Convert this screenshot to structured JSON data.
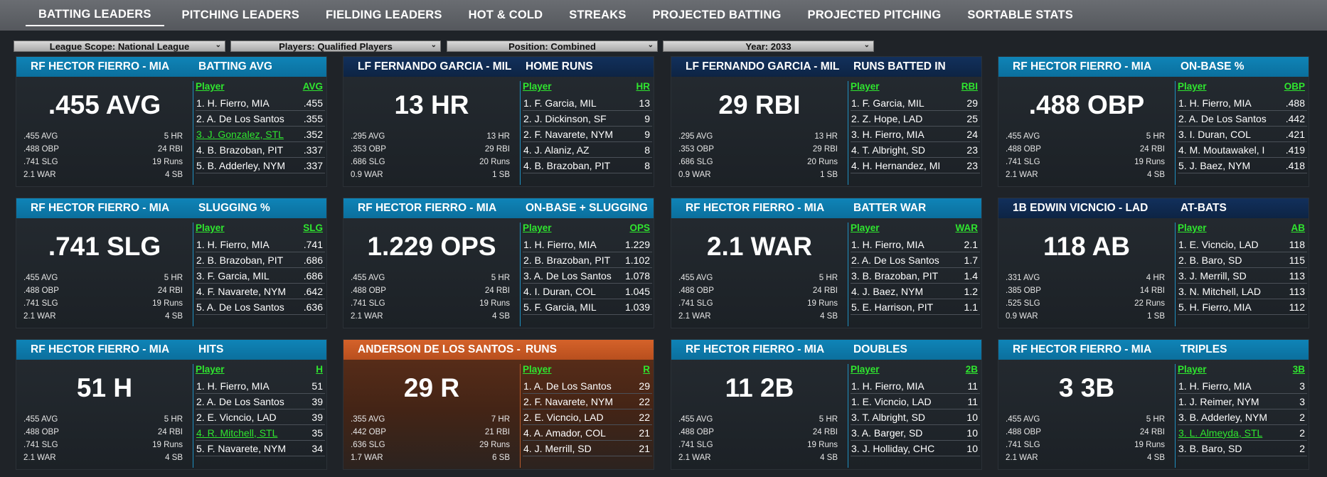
{
  "nav": {
    "tabs": [
      {
        "label": "BATTING LEADERS",
        "active": true
      },
      {
        "label": "PITCHING LEADERS"
      },
      {
        "label": "FIELDING LEADERS"
      },
      {
        "label": "HOT & COLD"
      },
      {
        "label": "STREAKS"
      },
      {
        "label": "PROJECTED BATTING"
      },
      {
        "label": "PROJECTED PITCHING"
      },
      {
        "label": "SORTABLE STATS"
      }
    ]
  },
  "filters": [
    {
      "label": "League Scope: National League"
    },
    {
      "label": "Players: Qualified Players"
    },
    {
      "label": "Position: Combined"
    },
    {
      "label": "Year: 2033"
    }
  ],
  "colors": {
    "header_blue": "#0f84b7",
    "header_dark": "#12305c",
    "header_orange": "#d5622a",
    "link_green": "#2fe62f"
  },
  "cards": [
    {
      "header_style": "blue",
      "player": "RF HECTOR FIERRO - MIA",
      "stat": "BATTING AVG",
      "big": ".455 AVG",
      "sub": [
        [
          ".455 AVG",
          "5 HR"
        ],
        [
          ".488 OBP",
          "24 RBI"
        ],
        [
          ".741 SLG",
          "19 Runs"
        ],
        [
          "2.1 WAR",
          "4 SB"
        ]
      ],
      "col_player": "Player",
      "col_stat": "AVG",
      "rows": [
        {
          "p": "1. H. Fierro, MIA",
          "v": ".455"
        },
        {
          "p": "2. A. De Los Santos",
          "v": ".355"
        },
        {
          "p": "3. J. Gonzalez, STL",
          "v": ".352",
          "hl": true
        },
        {
          "p": "4. B. Brazoban, PIT",
          "v": ".337"
        },
        {
          "p": "5. B. Adderley, NYM",
          "v": ".337"
        }
      ]
    },
    {
      "header_style": "dark",
      "player": "LF FERNANDO GARCIA - MIL",
      "stat": "HOME RUNS",
      "big": "13 HR",
      "sub": [
        [
          ".295 AVG",
          "13 HR"
        ],
        [
          ".353 OBP",
          "29 RBI"
        ],
        [
          ".686 SLG",
          "20 Runs"
        ],
        [
          "0.9 WAR",
          "1 SB"
        ]
      ],
      "col_player": "Player",
      "col_stat": "HR",
      "rows": [
        {
          "p": "1. F. Garcia, MIL",
          "v": "13"
        },
        {
          "p": "2. J. Dickinson, SF",
          "v": "9"
        },
        {
          "p": "2. F. Navarete, NYM",
          "v": "9"
        },
        {
          "p": "4. J. Alaniz, AZ",
          "v": "8"
        },
        {
          "p": "4. B. Brazoban, PIT",
          "v": "8"
        }
      ]
    },
    {
      "header_style": "dark",
      "player": "LF FERNANDO GARCIA - MIL",
      "stat": "RUNS BATTED IN",
      "big": "29 RBI",
      "sub": [
        [
          ".295 AVG",
          "13 HR"
        ],
        [
          ".353 OBP",
          "29 RBI"
        ],
        [
          ".686 SLG",
          "20 Runs"
        ],
        [
          "0.9 WAR",
          "1 SB"
        ]
      ],
      "col_player": "Player",
      "col_stat": "RBI",
      "rows": [
        {
          "p": "1. F. Garcia, MIL",
          "v": "29"
        },
        {
          "p": "2. Z. Hope, LAD",
          "v": "25"
        },
        {
          "p": "3. H. Fierro, MIA",
          "v": "24"
        },
        {
          "p": "4. T. Albright, SD",
          "v": "23"
        },
        {
          "p": "4. H. Hernandez, MI",
          "v": "23"
        }
      ]
    },
    {
      "header_style": "blue",
      "player": "RF HECTOR FIERRO - MIA",
      "stat": "ON-BASE %",
      "big": ".488 OBP",
      "sub": [
        [
          ".455 AVG",
          "5 HR"
        ],
        [
          ".488 OBP",
          "24 RBI"
        ],
        [
          ".741 SLG",
          "19 Runs"
        ],
        [
          "2.1 WAR",
          "4 SB"
        ]
      ],
      "col_player": "Player",
      "col_stat": "OBP",
      "rows": [
        {
          "p": "1. H. Fierro, MIA",
          "v": ".488"
        },
        {
          "p": "2. A. De Los Santos",
          "v": ".442"
        },
        {
          "p": "3. I. Duran, COL",
          "v": ".421"
        },
        {
          "p": "4. M. Moutawakel, I",
          "v": ".419"
        },
        {
          "p": "5. J. Baez, NYM",
          "v": ".418"
        }
      ]
    },
    {
      "header_style": "blue",
      "player": "RF HECTOR FIERRO - MIA",
      "stat": "SLUGGING %",
      "big": ".741 SLG",
      "sub": [
        [
          ".455 AVG",
          "5 HR"
        ],
        [
          ".488 OBP",
          "24 RBI"
        ],
        [
          ".741 SLG",
          "19 Runs"
        ],
        [
          "2.1 WAR",
          "4 SB"
        ]
      ],
      "col_player": "Player",
      "col_stat": "SLG",
      "rows": [
        {
          "p": "1. H. Fierro, MIA",
          "v": ".741"
        },
        {
          "p": "2. B. Brazoban, PIT",
          "v": ".686"
        },
        {
          "p": "3. F. Garcia, MIL",
          "v": ".686"
        },
        {
          "p": "4. F. Navarete, NYM",
          "v": ".642"
        },
        {
          "p": "5. A. De Los Santos",
          "v": ".636"
        }
      ]
    },
    {
      "header_style": "blue",
      "player": "RF HECTOR FIERRO - MIA",
      "stat": "ON-BASE + SLUGGING",
      "big": "1.229 OPS",
      "sub": [
        [
          ".455 AVG",
          "5 HR"
        ],
        [
          ".488 OBP",
          "24 RBI"
        ],
        [
          ".741 SLG",
          "19 Runs"
        ],
        [
          "2.1 WAR",
          "4 SB"
        ]
      ],
      "col_player": "Player",
      "col_stat": "OPS",
      "rows": [
        {
          "p": "1. H. Fierro, MIA",
          "v": "1.229"
        },
        {
          "p": "2. B. Brazoban, PIT",
          "v": "1.102"
        },
        {
          "p": "3. A. De Los Santos",
          "v": "1.078"
        },
        {
          "p": "4. I. Duran, COL",
          "v": "1.045"
        },
        {
          "p": "5. F. Garcia, MIL",
          "v": "1.039"
        }
      ]
    },
    {
      "header_style": "blue",
      "player": "RF HECTOR FIERRO - MIA",
      "stat": "BATTER WAR",
      "big": "2.1 WAR",
      "sub": [
        [
          ".455 AVG",
          "5 HR"
        ],
        [
          ".488 OBP",
          "24 RBI"
        ],
        [
          ".741 SLG",
          "19 Runs"
        ],
        [
          "2.1 WAR",
          "4 SB"
        ]
      ],
      "col_player": "Player",
      "col_stat": "WAR",
      "rows": [
        {
          "p": "1. H. Fierro, MIA",
          "v": "2.1"
        },
        {
          "p": "2. A. De Los Santos",
          "v": "1.7"
        },
        {
          "p": "3. B. Brazoban, PIT",
          "v": "1.4"
        },
        {
          "p": "4. J. Baez, NYM",
          "v": "1.2"
        },
        {
          "p": "5. E. Harrison, PIT",
          "v": "1.1"
        }
      ]
    },
    {
      "header_style": "dark",
      "player": "1B EDWIN VICNCIO - LAD",
      "stat": "AT-BATS",
      "big": "118 AB",
      "sub": [
        [
          ".331 AVG",
          "4 HR"
        ],
        [
          ".385 OBP",
          "14 RBI"
        ],
        [
          ".525 SLG",
          "22 Runs"
        ],
        [
          "0.9 WAR",
          "1 SB"
        ]
      ],
      "col_player": "Player",
      "col_stat": "AB",
      "rows": [
        {
          "p": "1. E. Vicncio, LAD",
          "v": "118"
        },
        {
          "p": "2. B. Baro, SD",
          "v": "115"
        },
        {
          "p": "3. J. Merrill, SD",
          "v": "113"
        },
        {
          "p": "3. N. Mitchell, LAD",
          "v": "113"
        },
        {
          "p": "5. H. Fierro, MIA",
          "v": "112"
        }
      ]
    },
    {
      "header_style": "blue",
      "player": "RF HECTOR FIERRO - MIA",
      "stat": "HITS",
      "big": "51 H",
      "sub": [
        [
          ".455 AVG",
          "5 HR"
        ],
        [
          ".488 OBP",
          "24 RBI"
        ],
        [
          ".741 SLG",
          "19 Runs"
        ],
        [
          "2.1 WAR",
          "4 SB"
        ]
      ],
      "col_player": "Player",
      "col_stat": "H",
      "rows": [
        {
          "p": "1. H. Fierro, MIA",
          "v": "51"
        },
        {
          "p": "2. A. De Los Santos",
          "v": "39"
        },
        {
          "p": "2. E. Vicncio, LAD",
          "v": "39"
        },
        {
          "p": "4. R. Mitchell, STL",
          "v": "35",
          "hl": true
        },
        {
          "p": "5. F. Navarete, NYM",
          "v": "34"
        }
      ]
    },
    {
      "header_style": "orange",
      "player": "ANDERSON DE LOS SANTOS -",
      "stat": "RUNS",
      "big": "29 R",
      "sub": [
        [
          ".355 AVG",
          "7 HR"
        ],
        [
          ".442 OBP",
          "21 RBI"
        ],
        [
          ".636 SLG",
          "29 Runs"
        ],
        [
          "1.7 WAR",
          "6 SB"
        ]
      ],
      "col_player": "Player",
      "col_stat": "R",
      "rows": [
        {
          "p": "1. A. De Los Santos",
          "v": "29"
        },
        {
          "p": "2. F. Navarete, NYM",
          "v": "22"
        },
        {
          "p": "2. E. Vicncio, LAD",
          "v": "22"
        },
        {
          "p": "4. A. Amador, COL",
          "v": "21"
        },
        {
          "p": "4. J. Merrill, SD",
          "v": "21"
        }
      ]
    },
    {
      "header_style": "blue",
      "player": "RF HECTOR FIERRO - MIA",
      "stat": "DOUBLES",
      "big": "11 2B",
      "sub": [
        [
          ".455 AVG",
          "5 HR"
        ],
        [
          ".488 OBP",
          "24 RBI"
        ],
        [
          ".741 SLG",
          "19 Runs"
        ],
        [
          "2.1 WAR",
          "4 SB"
        ]
      ],
      "col_player": "Player",
      "col_stat": "2B",
      "rows": [
        {
          "p": "1. H. Fierro, MIA",
          "v": "11"
        },
        {
          "p": "1. E. Vicncio, LAD",
          "v": "11"
        },
        {
          "p": "3. T. Albright, SD",
          "v": "10"
        },
        {
          "p": "3. A. Barger, SD",
          "v": "10"
        },
        {
          "p": "3. J. Holliday, CHC",
          "v": "10"
        }
      ]
    },
    {
      "header_style": "blue",
      "player": "RF HECTOR FIERRO - MIA",
      "stat": "TRIPLES",
      "big": "3 3B",
      "sub": [
        [
          ".455 AVG",
          "5 HR"
        ],
        [
          ".488 OBP",
          "24 RBI"
        ],
        [
          ".741 SLG",
          "19 Runs"
        ],
        [
          "2.1 WAR",
          "4 SB"
        ]
      ],
      "col_player": "Player",
      "col_stat": "3B",
      "rows": [
        {
          "p": "1. H. Fierro, MIA",
          "v": "3"
        },
        {
          "p": "1. J. Reimer, NYM",
          "v": "3"
        },
        {
          "p": "3. B. Adderley, NYM",
          "v": "2"
        },
        {
          "p": "3. L. Almeyda, STL",
          "v": "2",
          "hl": true
        },
        {
          "p": "3. B. Baro, SD",
          "v": "2"
        }
      ]
    }
  ]
}
